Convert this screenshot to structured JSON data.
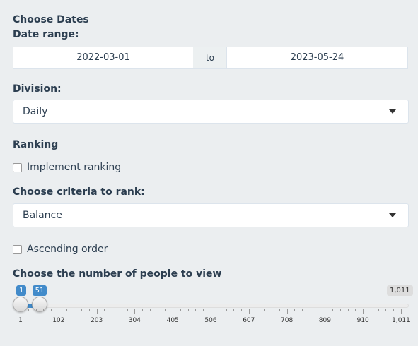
{
  "headings": {
    "choose_dates": "Choose Dates",
    "ranking": "Ranking"
  },
  "date_range": {
    "label": "Date range:",
    "start": "2022-03-01",
    "separator": "to",
    "end": "2023-05-24"
  },
  "division": {
    "label": "Division:",
    "selected": "Daily"
  },
  "implement_ranking": {
    "label": "Implement ranking",
    "checked": false
  },
  "criteria": {
    "label": "Choose criteria to rank:",
    "selected": "Balance"
  },
  "ascending": {
    "label": "Ascending order",
    "checked": false
  },
  "people_slider": {
    "label": "Choose the number of people to view",
    "min_label": "1",
    "max_label": "1,011",
    "from": 1,
    "to": 51,
    "from_label": "1",
    "to_label": "51",
    "ticks": [
      "1",
      "102",
      "203",
      "304",
      "405",
      "506",
      "607",
      "708",
      "809",
      "910",
      "1,011"
    ]
  },
  "colors": {
    "accent": "#428bca",
    "background": "#ebeef0",
    "text": "#2c3e50"
  }
}
